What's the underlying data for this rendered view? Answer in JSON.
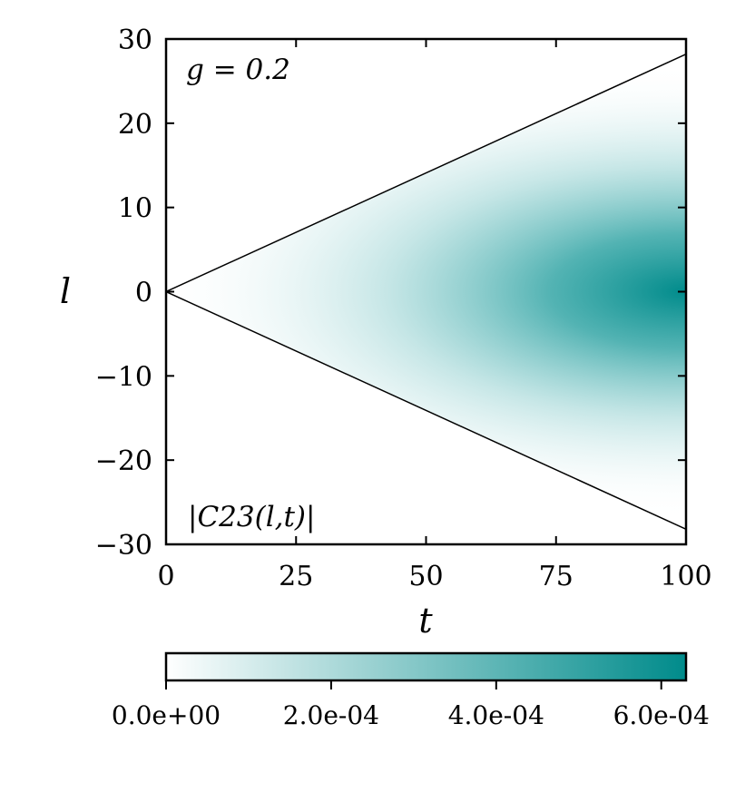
{
  "chart_data": {
    "type": "heatmap",
    "title": "",
    "xlabel": "t",
    "ylabel": "l",
    "xlim": [
      0,
      100
    ],
    "ylim": [
      -30,
      30
    ],
    "x_ticks": [
      0,
      25,
      50,
      75,
      100
    ],
    "x_tick_labels": [
      "0",
      "25",
      "50",
      "75",
      "100"
    ],
    "y_ticks": [
      30,
      20,
      10,
      0,
      -10,
      -20,
      -30
    ],
    "y_tick_labels": [
      "30",
      "20",
      "10",
      "0",
      "−10",
      "−20",
      "−30"
    ],
    "annotations": {
      "parameter": "g = 0.2",
      "quantity": "|C23(l,t)|"
    },
    "light_cone": {
      "lines": [
        {
          "x": [
            0,
            100
          ],
          "y": [
            0,
            28.2
          ]
        },
        {
          "x": [
            0,
            100
          ],
          "y": [
            0,
            -28.2
          ]
        }
      ]
    },
    "field_description_values": {
      "max_value": 0.00063,
      "peak_location": {
        "t": 100,
        "l": 0
      }
    },
    "colorbar": {
      "orientation": "horizontal",
      "placement": "below",
      "min": 0,
      "max": 0.00063,
      "ticks": [
        0,
        0.0002,
        0.0004,
        0.0006
      ],
      "tick_labels": [
        "0.0e+00",
        "2.0e-04",
        "4.0e-04",
        "6.0e-04"
      ],
      "colors": [
        "#ffffff",
        "#008b8b"
      ]
    },
    "grid": false
  }
}
